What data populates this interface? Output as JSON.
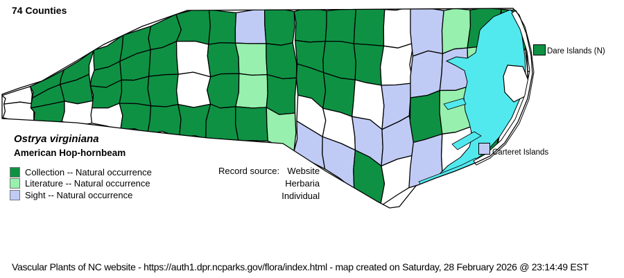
{
  "title": "74 Counties",
  "species": {
    "scientific": "Ostrya virginiana",
    "common": "American Hop-hornbeam"
  },
  "legend": [
    {
      "code": "C",
      "label": "Collection -- Natural occurrence",
      "color": "#0f9144"
    },
    {
      "code": "L",
      "label": "Literature -- Natural occurrence",
      "color": "#97f0ad"
    },
    {
      "code": "S",
      "label": "Sight -- Natural occurrence",
      "color": "#c0cbf5"
    }
  ],
  "record_source": {
    "label": "Record source:",
    "values": [
      "Website",
      "Herbaria",
      "Individual"
    ]
  },
  "map": {
    "island_labels": [
      {
        "name": "Dare Islands (N)",
        "status": "C"
      },
      {
        "name": "Carteret Islands",
        "status": "S"
      }
    ],
    "water_color": "#52e9ee",
    "no_record_color": "#ffffff",
    "border_color": "#000000",
    "county_status_columns": [
      [
        "N",
        "N"
      ],
      [
        "C",
        "C",
        "C"
      ],
      [
        "C",
        "C",
        "N"
      ],
      [
        "C",
        "C",
        "C",
        "N"
      ],
      [
        "C",
        "C",
        "C",
        "C"
      ],
      [
        "C",
        "C",
        "C",
        "C"
      ],
      [
        "C",
        "N",
        "N",
        "C"
      ],
      [
        "C",
        "C",
        "C",
        "C"
      ],
      [
        "S",
        "L",
        "L",
        "C"
      ],
      [
        "C",
        "C",
        "C",
        "L"
      ],
      [
        "C",
        "C",
        "C",
        "N",
        "S"
      ],
      [
        "C",
        "C",
        "C",
        "N",
        "S"
      ],
      [
        "C",
        "C",
        "N",
        "S",
        "C"
      ],
      [
        "N",
        "N",
        "S",
        "S",
        "N"
      ],
      [
        "S",
        "S",
        "C",
        "S"
      ],
      [
        "L",
        "S",
        "L",
        "N"
      ],
      [
        "C",
        "L",
        "C",
        "C"
      ],
      [
        "C",
        "N",
        "N"
      ],
      [
        "N",
        "N"
      ]
    ]
  },
  "footer": "Vascular Plants of NC website - https://auth1.dpr.ncparks.gov/flora/index.html - map created on Saturday, 28 February 2026 @ 23:14:49 EST"
}
